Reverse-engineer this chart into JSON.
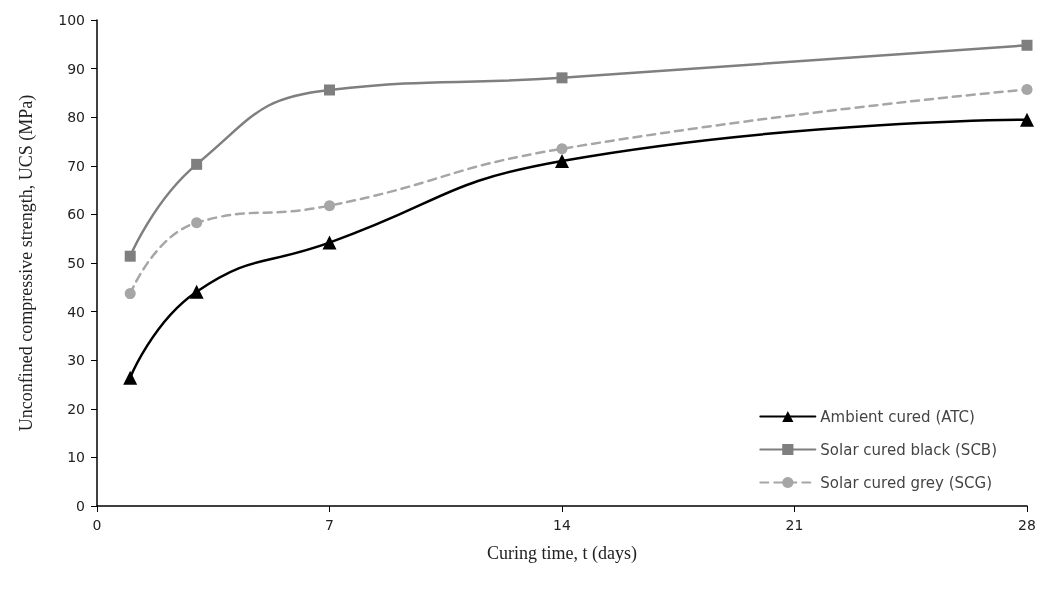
{
  "chart_data": {
    "type": "line",
    "xlabel": "Curing time, t (days)",
    "ylabel": "Unconfined compressive strength, UCS (MPa)",
    "x": [
      1,
      3,
      7,
      14,
      28
    ],
    "series": [
      {
        "name": "Ambient cured (ATC)",
        "color": "#000000",
        "marker": "triangle",
        "line_style": "solid",
        "values": [
          26.4,
          44.1,
          54.2,
          71.0,
          79.5
        ]
      },
      {
        "name": "Solar cured black (SCB)",
        "color": "#7f7f7f",
        "marker": "square",
        "line_style": "solid",
        "values": [
          51.4,
          70.3,
          85.6,
          88.1,
          94.8
        ]
      },
      {
        "name": "Solar cured grey (SCG)",
        "color": "#a6a6a6",
        "marker": "circle",
        "line_style": "dashed",
        "values": [
          43.7,
          58.3,
          61.8,
          73.5,
          85.7
        ]
      }
    ],
    "xlim": [
      0,
      28
    ],
    "xticks": [
      0,
      7,
      14,
      21,
      28
    ],
    "ylim": [
      0,
      100
    ],
    "yticks": [
      0,
      10,
      20,
      30,
      40,
      50,
      60,
      70,
      80,
      90,
      100
    ],
    "grid": false,
    "legend": "bottom right"
  }
}
